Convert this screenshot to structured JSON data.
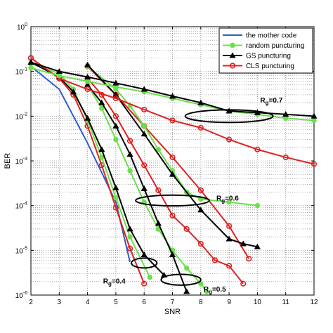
{
  "chart_data": {
    "type": "line",
    "xlabel": "SNR",
    "ylabel": "BER",
    "xlim": [
      2,
      12
    ],
    "ylim": [
      1e-06,
      1
    ],
    "y_scale": "log",
    "grid": "on (dotted, major and minor)",
    "legend_placement": "top-right",
    "x_ticks": [
      "2",
      "3",
      "4",
      "5",
      "6",
      "7",
      "8",
      "9",
      "10",
      "11",
      "12"
    ],
    "y_ticks": [
      {
        "exp": "0",
        "value": 1
      },
      {
        "exp": "-1",
        "value": 0.1
      },
      {
        "exp": "-2",
        "value": 0.01
      },
      {
        "exp": "-3",
        "value": 0.001
      },
      {
        "exp": "-4",
        "value": 0.0001
      },
      {
        "exp": "-5",
        "value": 1e-05
      },
      {
        "exp": "-6",
        "value": 1e-06
      }
    ],
    "legend": [
      {
        "label": "the mother code",
        "color": "#2f5ec8",
        "marker": "none"
      },
      {
        "label": "random puncturing",
        "color": "#6be04a",
        "marker": "circle"
      },
      {
        "label": "GS puncturing",
        "color": "#000000",
        "marker": "triangle"
      },
      {
        "label": "CLS puncturing",
        "color": "#e02020",
        "marker": "circle-open"
      }
    ],
    "series": [
      {
        "name": "the mother code",
        "color": "#2f5ec8",
        "marker": "none",
        "x": [
          2,
          3,
          4,
          5,
          5.5
        ],
        "y": [
          0.13,
          0.04,
          0.0025,
          0.00012,
          5.5e-06
        ]
      },
      {
        "name": "CLS puncturing",
        "color": "#e02020",
        "marker": "circle-open",
        "x": [
          2,
          3,
          3.5,
          4,
          4.5,
          5,
          5.5,
          6
        ],
        "y": [
          0.2,
          0.07,
          0.03,
          0.006,
          0.0008,
          9e-05,
          1.1e-05,
          1.8e-06
        ]
      },
      {
        "name": "random puncturing",
        "color": "#6be04a",
        "marker": "circle",
        "x": [
          2,
          3,
          3.5,
          4,
          4.5,
          5,
          5.5,
          6.2
        ],
        "y": [
          0.15,
          0.09,
          0.04,
          0.008,
          0.0012,
          0.00015,
          2e-05,
          2.5e-06
        ]
      },
      {
        "name": "GS puncturing",
        "color": "#000000",
        "marker": "triangle",
        "x": [
          2,
          3,
          3.5,
          4,
          4.5,
          5,
          5.5,
          6,
          6.7
        ],
        "y": [
          0.16,
          0.075,
          0.035,
          0.009,
          0.0018,
          0.00025,
          3e-05,
          8e-06,
          2.8e-06
        ]
      },
      {
        "name": "CLS puncturing",
        "color": "#e02020",
        "marker": "circle-open",
        "x": [
          4,
          4.5,
          5,
          5.5,
          6,
          6.5,
          7,
          7.5,
          8,
          8.5,
          9,
          9.5
        ],
        "y": [
          0.07,
          0.03,
          0.01,
          0.0028,
          0.0008,
          0.00022,
          6e-05,
          3e-05,
          1.4e-05,
          6e-06,
          4.5e-06,
          1.8e-06
        ]
      },
      {
        "name": "random puncturing",
        "color": "#6be04a",
        "marker": "circle",
        "x": [
          4,
          4.5,
          5,
          5.5,
          6,
          6.5,
          7,
          7.5,
          8,
          8.2
        ],
        "y": [
          0.05,
          0.015,
          0.003,
          0.0006,
          0.00012,
          3e-05,
          1e-05,
          4e-06,
          1.8e-06,
          1.2e-06
        ]
      },
      {
        "name": "GS puncturing",
        "color": "#000000",
        "marker": "triangle",
        "x": [
          4,
          4.5,
          5,
          5.5,
          6,
          6.5,
          7,
          7.5
        ],
        "y": [
          0.05,
          0.02,
          0.006,
          0.0014,
          0.00024,
          4e-05,
          8e-06,
          1.2e-06
        ]
      },
      {
        "name": "CLS puncturing",
        "color": "#e02020",
        "marker": "circle-open",
        "x": [
          4,
          5,
          6,
          7,
          8,
          9,
          9.7
        ],
        "y": [
          0.13,
          0.03,
          0.006,
          0.0012,
          0.00022,
          3.5e-05,
          6.5e-06
        ]
      },
      {
        "name": "random puncturing",
        "color": "#6be04a",
        "marker": "circle",
        "x": [
          4,
          5,
          5.5,
          6,
          6.5,
          7,
          7.5,
          8,
          9,
          10
        ],
        "y": [
          0.13,
          0.04,
          0.017,
          0.006,
          0.0018,
          0.0006,
          0.0002,
          0.00014,
          0.00012,
          0.0001
        ]
      },
      {
        "name": "GS puncturing",
        "color": "#000000",
        "marker": "triangle",
        "x": [
          4,
          5,
          6,
          7,
          8,
          9,
          9.5,
          10
        ],
        "y": [
          0.14,
          0.03,
          0.004,
          0.0005,
          8e-05,
          1.8e-05,
          1.4e-05,
          1.2e-05
        ]
      },
      {
        "name": "CLS puncturing",
        "color": "#e02020",
        "marker": "circle-open",
        "x": [
          2,
          3,
          4,
          5,
          6,
          7,
          8,
          9,
          10,
          11,
          12
        ],
        "y": [
          0.2,
          0.07,
          0.04,
          0.025,
          0.014,
          0.008,
          0.0055,
          0.003,
          0.0018,
          0.0012,
          0.00085
        ]
      },
      {
        "name": "random puncturing",
        "color": "#6be04a",
        "marker": "circle",
        "x": [
          2,
          3,
          4,
          5,
          6,
          7,
          8,
          9,
          10,
          11,
          12
        ],
        "y": [
          0.12,
          0.08,
          0.06,
          0.045,
          0.035,
          0.025,
          0.018,
          0.013,
          0.011,
          0.009,
          0.008
        ]
      },
      {
        "name": "GS puncturing",
        "color": "#000000",
        "marker": "triangle",
        "x": [
          2,
          3,
          4,
          5,
          6,
          7,
          8,
          9,
          10,
          11,
          12
        ],
        "y": [
          0.16,
          0.1,
          0.075,
          0.055,
          0.04,
          0.028,
          0.02,
          0.013,
          0.012,
          0.011,
          0.01
        ]
      }
    ],
    "annotations": [
      {
        "label": "R",
        "sub": "g",
        "value": "=0.7",
        "ellipse": {
          "cx": 9.0,
          "cy": 0.01,
          "rx_data": 1.55,
          "ry_decades": 0.14
        },
        "text_at": {
          "x": 10.1,
          "y": 0.02
        }
      },
      {
        "label": "R",
        "sub": "g",
        "value": "=0.6",
        "ellipse": {
          "cx": 7.0,
          "cy": 0.00013,
          "rx_data": 1.3,
          "ry_decades": 0.12
        },
        "text_at": {
          "x": 8.55,
          "y": 0.00013
        }
      },
      {
        "label": "R",
        "sub": "g",
        "value": "=0.5",
        "ellipse": {
          "cx": 7.3,
          "cy": 2.2e-06,
          "rx_data": 0.7,
          "ry_decades": 0.12
        },
        "text_at": {
          "x": 8.1,
          "y": 1.2e-06
        }
      },
      {
        "label": "R",
        "sub": "g",
        "value": "=0.4",
        "ellipse": {
          "cx": 6.0,
          "cy": 5.2e-06,
          "rx_data": 0.45,
          "ry_decades": 0.11
        },
        "text_at": {
          "x": 4.55,
          "y": 1.8e-06
        }
      }
    ]
  }
}
